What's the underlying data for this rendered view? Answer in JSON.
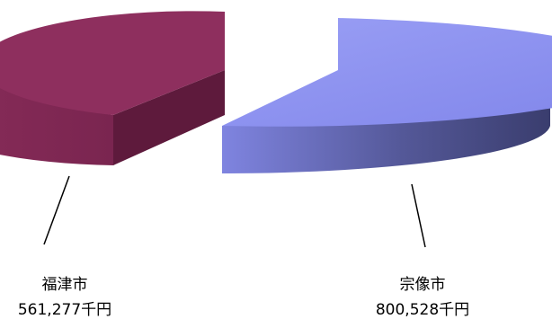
{
  "chart_data": {
    "type": "pie",
    "title": "",
    "categories": [
      "福津市",
      "宗像市"
    ],
    "values": [
      561277,
      800528
    ],
    "unit": "千円",
    "value_labels": [
      "561,277千円",
      "800,528千円"
    ],
    "colors": {
      "福津市": "#8e2f5e",
      "宗像市": "#8a8ff0"
    },
    "exploded": true,
    "three_d": true,
    "legend": "none"
  }
}
